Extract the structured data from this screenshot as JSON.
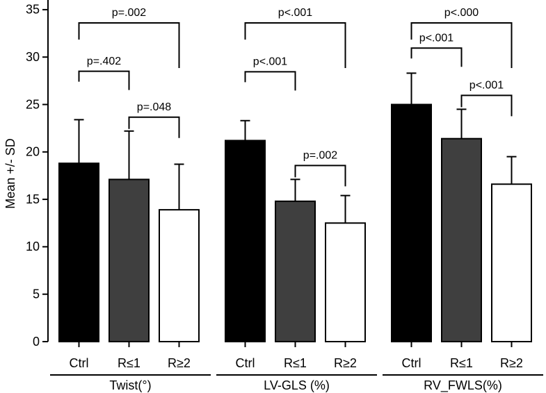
{
  "chart_data": {
    "type": "bar",
    "ylabel": "Mean +/- SD",
    "ylim": [
      0,
      36
    ],
    "yticks": [
      0,
      5,
      10,
      15,
      20,
      25,
      30,
      35
    ],
    "groups": [
      "Twist(°)",
      "LV-GLS (%)",
      "RV_FWLS(%)"
    ],
    "series": [
      {
        "name": "Ctrl",
        "color": "#000000",
        "values": [
          18.8,
          21.2,
          25.0
        ],
        "errors": [
          4.6,
          2.1,
          3.3
        ]
      },
      {
        "name": "R≤1",
        "color": "#3f3f3f",
        "values": [
          17.1,
          14.8,
          21.4
        ],
        "errors": [
          5.1,
          2.3,
          3.1
        ]
      },
      {
        "name": "R≥2",
        "color": "#ffffff",
        "values": [
          13.9,
          12.5,
          16.6
        ],
        "errors": [
          4.8,
          2.9,
          2.9
        ]
      }
    ],
    "comparisons": [
      [
        {
          "between": [
            "Ctrl",
            "R≤1"
          ],
          "text": "p=.402"
        },
        {
          "between": [
            "R≤1",
            "R≥2"
          ],
          "text": "p=.048"
        },
        {
          "between": [
            "Ctrl",
            "R≥2"
          ],
          "text": "p=.002"
        }
      ],
      [
        {
          "between": [
            "Ctrl",
            "R≤1"
          ],
          "text": "p<.001"
        },
        {
          "between": [
            "R≤1",
            "R≥2"
          ],
          "text": "p=.002"
        },
        {
          "between": [
            "Ctrl",
            "R≥2"
          ],
          "text": "p<.001"
        }
      ],
      [
        {
          "between": [
            "Ctrl",
            "R≤1"
          ],
          "text": "p<.001"
        },
        {
          "between": [
            "R≤1",
            "R≥2"
          ],
          "text": "p<.001"
        },
        {
          "between": [
            "Ctrl",
            "R≥2"
          ],
          "text": "p<.000"
        }
      ]
    ]
  }
}
